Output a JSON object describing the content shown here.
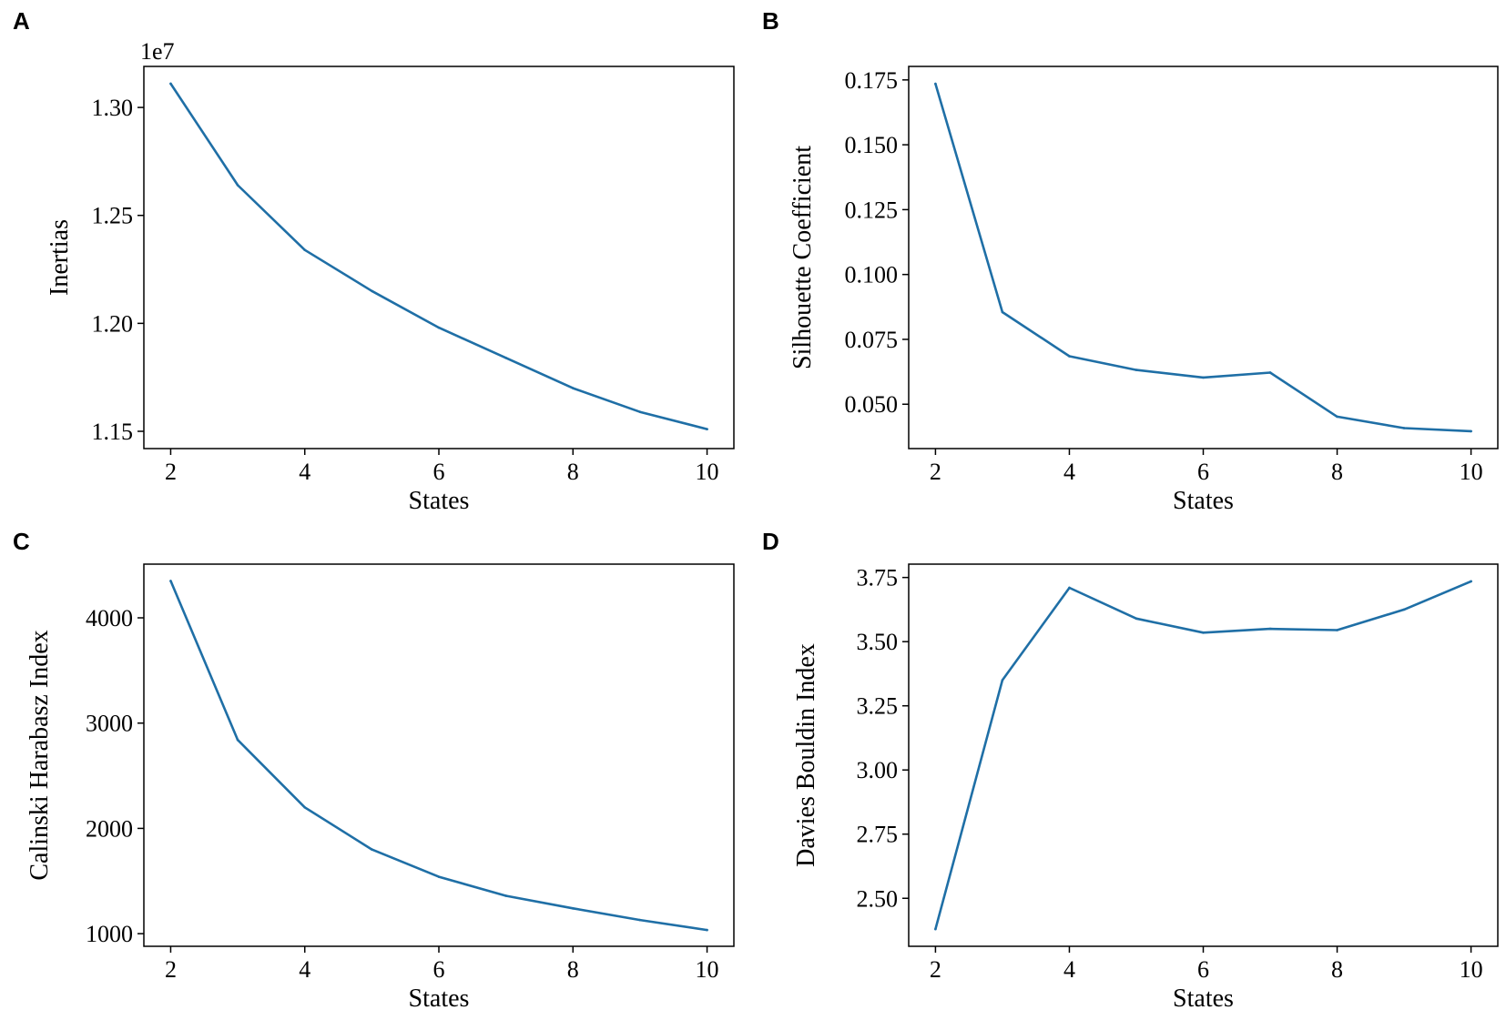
{
  "figure": {
    "line_color": "#1f6fa6"
  },
  "chart_data": [
    {
      "panel": "A",
      "type": "line",
      "title": "",
      "xlabel": "States",
      "ylabel": "Inertias",
      "offset_text": "1e7",
      "x": [
        2,
        3,
        4,
        5,
        6,
        7,
        8,
        9,
        10
      ],
      "series": [
        {
          "name": "Inertias",
          "values": [
            1.311,
            1.264,
            1.234,
            1.215,
            1.198,
            1.184,
            1.17,
            1.159,
            1.151
          ]
        }
      ],
      "xlim": [
        1.6,
        10.4
      ],
      "ylim": [
        1.142,
        1.319
      ],
      "xticks": [
        2,
        4,
        6,
        8,
        10
      ],
      "xtick_labels": [
        "2",
        "4",
        "6",
        "8",
        "10"
      ],
      "yticks": [
        1.15,
        1.2,
        1.25,
        1.3
      ],
      "ytick_labels": [
        "1.15",
        "1.20",
        "1.25",
        "1.30"
      ]
    },
    {
      "panel": "B",
      "type": "line",
      "title": "",
      "xlabel": "States",
      "ylabel": "Silhouette Coefficient",
      "x": [
        2,
        3,
        4,
        5,
        6,
        7,
        8,
        9,
        10
      ],
      "series": [
        {
          "name": "Silhouette Coefficient",
          "values": [
            0.1735,
            0.0855,
            0.0685,
            0.0632,
            0.0603,
            0.0622,
            0.0452,
            0.0408,
            0.0396
          ]
        }
      ],
      "xlim": [
        1.6,
        10.4
      ],
      "ylim": [
        0.0329,
        0.1802
      ],
      "xticks": [
        2,
        4,
        6,
        8,
        10
      ],
      "xtick_labels": [
        "2",
        "4",
        "6",
        "8",
        "10"
      ],
      "yticks": [
        0.05,
        0.075,
        0.1,
        0.125,
        0.15,
        0.175
      ],
      "ytick_labels": [
        "0.050",
        "0.075",
        "0.100",
        "0.125",
        "0.150",
        "0.175"
      ]
    },
    {
      "panel": "C",
      "type": "line",
      "title": "",
      "xlabel": "States",
      "ylabel": "Calinski Harabasz Index",
      "x": [
        2,
        3,
        4,
        5,
        6,
        7,
        8,
        9,
        10
      ],
      "series": [
        {
          "name": "Calinski Harabasz Index",
          "values": [
            4350,
            2840,
            2200,
            1800,
            1540,
            1360,
            1240,
            1130,
            1035
          ]
        }
      ],
      "xlim": [
        1.6,
        10.4
      ],
      "ylim": [
        880,
        4510
      ],
      "xticks": [
        2,
        4,
        6,
        8,
        10
      ],
      "xtick_labels": [
        "2",
        "4",
        "6",
        "8",
        "10"
      ],
      "yticks": [
        1000,
        2000,
        3000,
        4000
      ],
      "ytick_labels": [
        "1000",
        "2000",
        "3000",
        "4000"
      ]
    },
    {
      "panel": "D",
      "type": "line",
      "title": "",
      "xlabel": "States",
      "ylabel": "Davies Bouldin Index",
      "x": [
        2,
        3,
        4,
        5,
        6,
        7,
        8,
        9,
        10
      ],
      "series": [
        {
          "name": "Davies Bouldin Index",
          "values": [
            2.38,
            3.35,
            3.71,
            3.59,
            3.535,
            3.55,
            3.545,
            3.625,
            3.735
          ]
        }
      ],
      "xlim": [
        1.6,
        10.4
      ],
      "ylim": [
        2.313,
        3.802
      ],
      "xticks": [
        2,
        4,
        6,
        8,
        10
      ],
      "xtick_labels": [
        "2",
        "4",
        "6",
        "8",
        "10"
      ],
      "yticks": [
        2.5,
        2.75,
        3.0,
        3.25,
        3.5,
        3.75
      ],
      "ytick_labels": [
        "2.50",
        "2.75",
        "3.00",
        "3.25",
        "3.50",
        "3.75"
      ]
    }
  ]
}
